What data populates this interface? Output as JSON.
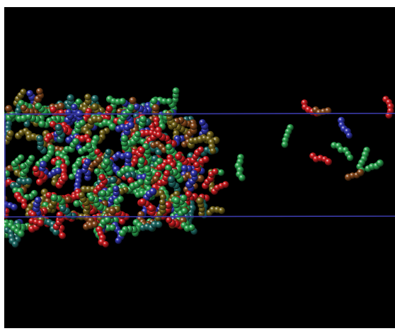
{
  "scene": {
    "kind": "molecular-dynamics-rendering",
    "background_color": "#000000",
    "border_color": "#ffffff",
    "box_line_color": "#3a3aa8",
    "atom_colors": {
      "red": "#d61e22",
      "green": "#2fae55",
      "blue": "#3338b8",
      "olive": "#7a6a1c",
      "teal": "#1f6f6a",
      "brown": "#8a4a1c",
      "dark-green": "#1b7a3a"
    },
    "slab_palette_weights": [
      [
        "green",
        34
      ],
      [
        "red",
        22
      ],
      [
        "blue",
        12
      ],
      [
        "olive",
        12
      ],
      [
        "teal",
        10
      ],
      [
        "brown",
        10
      ]
    ],
    "vapor_molecules_visible": true
  }
}
